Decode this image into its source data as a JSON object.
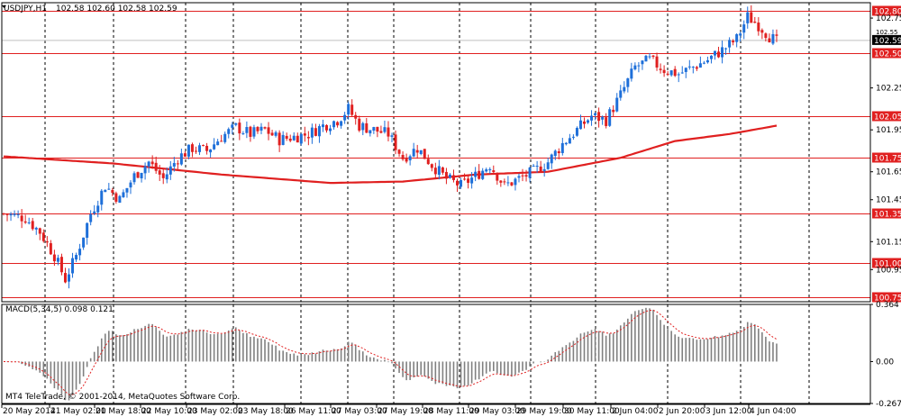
{
  "main_chart": {
    "symbol_label": "USDJPY,H1",
    "ohlc_label": "102.58 102.60 102.58 102.59",
    "price_tag": "102.59",
    "price_tag_secondary": "102.55",
    "y_ticks": [
      "102.75",
      "102.55",
      "102.25",
      "101.95",
      "101.65",
      "101.45",
      "101.15",
      "100.95"
    ],
    "h_lines": [
      {
        "label": "102.80",
        "value": 102.8
      },
      {
        "label": "102.50",
        "value": 102.5
      },
      {
        "label": "102.05",
        "value": 102.05
      },
      {
        "label": "101.75",
        "value": 101.75
      },
      {
        "label": "101.35",
        "value": 101.35
      },
      {
        "label": "101.00",
        "value": 101.0
      },
      {
        "label": "100.75",
        "value": 100.75
      }
    ]
  },
  "macd_panel": {
    "label": "MACD(5,34,5) 0.098 0.121",
    "y_ticks": [
      "0.364",
      "0.00",
      "-0.267"
    ],
    "copyright": "MT4 TeleTrade, © 2001-2014, MetaQuotes Software Corp."
  },
  "x_labels": [
    "20 May 2014",
    "21 May 02:00",
    "21 May 18:00",
    "22 May 10:00",
    "23 May 02:00",
    "23 May 18:00",
    "26 May 11:00",
    "27 May 03:00",
    "27 May 19:00",
    "28 May 11:00",
    "29 May 03:00",
    "29 May 19:00",
    "30 May 11:00",
    "2 Jun 04:00",
    "2 Jun 20:00",
    "3 Jun 12:00",
    "4 Jun 04:00"
  ],
  "colors": {
    "bull": "#1e6fd9",
    "bear": "#e02020",
    "ma": "#e02020",
    "level": "#e02020",
    "grid": "#000000",
    "macd_hist": "#808080",
    "macd_signal": "#e02020"
  },
  "chart_data": {
    "type": "candlestick",
    "symbol": "USDJPY",
    "timeframe": "H1",
    "ylim": [
      100.72,
      102.86
    ],
    "close_path": [
      [
        0,
        101.35
      ],
      [
        6,
        101.32
      ],
      [
        10,
        101.22
      ],
      [
        14,
        101.05
      ],
      [
        17,
        100.88
      ],
      [
        20,
        101.05
      ],
      [
        24,
        101.35
      ],
      [
        28,
        101.55
      ],
      [
        32,
        101.45
      ],
      [
        36,
        101.62
      ],
      [
        40,
        101.72
      ],
      [
        44,
        101.6
      ],
      [
        48,
        101.75
      ],
      [
        52,
        101.82
      ],
      [
        56,
        101.8
      ],
      [
        60,
        101.9
      ],
      [
        64,
        101.97
      ],
      [
        68,
        101.92
      ],
      [
        72,
        101.95
      ],
      [
        76,
        101.88
      ],
      [
        80,
        101.9
      ],
      [
        84,
        101.92
      ],
      [
        88,
        101.98
      ],
      [
        92,
        102.02
      ],
      [
        95,
        102.1
      ],
      [
        98,
        101.98
      ],
      [
        102,
        101.95
      ],
      [
        106,
        101.92
      ],
      [
        110,
        101.75
      ],
      [
        114,
        101.82
      ],
      [
        118,
        101.7
      ],
      [
        122,
        101.6
      ],
      [
        126,
        101.55
      ],
      [
        130,
        101.62
      ],
      [
        134,
        101.7
      ],
      [
        138,
        101.55
      ],
      [
        142,
        101.6
      ],
      [
        146,
        101.65
      ],
      [
        150,
        101.72
      ],
      [
        154,
        101.85
      ],
      [
        158,
        101.95
      ],
      [
        162,
        102.05
      ],
      [
        166,
        102.02
      ],
      [
        170,
        102.2
      ],
      [
        174,
        102.4
      ],
      [
        178,
        102.45
      ],
      [
        182,
        102.38
      ],
      [
        186,
        102.35
      ],
      [
        190,
        102.4
      ],
      [
        194,
        102.45
      ],
      [
        198,
        102.52
      ],
      [
        202,
        102.6
      ],
      [
        205,
        102.76
      ],
      [
        208,
        102.7
      ],
      [
        211,
        102.62
      ],
      [
        213,
        102.58
      ]
    ],
    "moving_average": [
      [
        0,
        101.76
      ],
      [
        30,
        101.71
      ],
      [
        60,
        101.63
      ],
      [
        90,
        101.57
      ],
      [
        110,
        101.58
      ],
      [
        130,
        101.63
      ],
      [
        150,
        101.65
      ],
      [
        170,
        101.75
      ],
      [
        185,
        101.87
      ],
      [
        200,
        101.92
      ],
      [
        213,
        101.98
      ]
    ],
    "macd": {
      "label": "MACD(5,34,5)",
      "main": 0.098,
      "signal": 0.121,
      "ylim": [
        -0.267,
        0.364
      ]
    }
  }
}
